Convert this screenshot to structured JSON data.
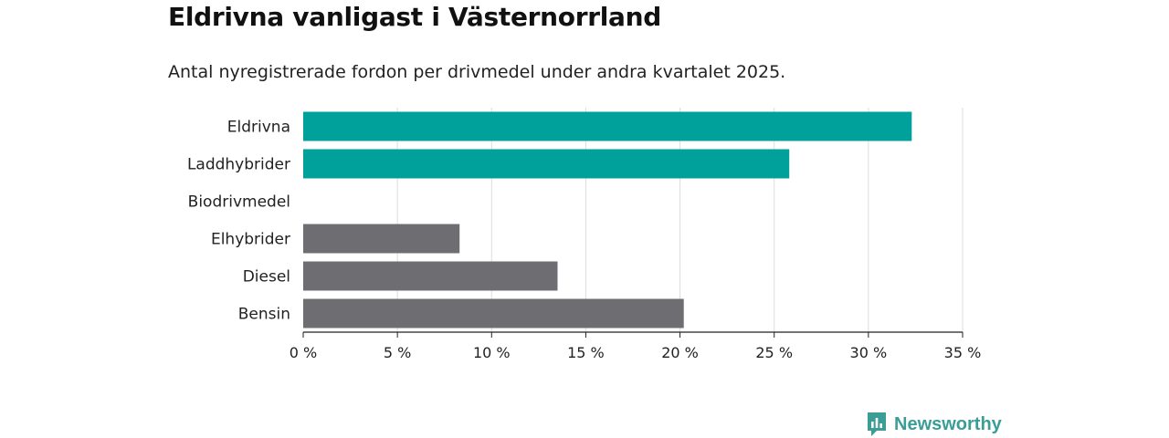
{
  "header": {
    "title": "Eldrivna vanligast i Västernorrland",
    "subtitle": "Antal nyregistrerade fordon per drivmedel under andra kvartalet 2025."
  },
  "brand": {
    "name": "Newsworthy",
    "icon": "newsworthy-logo-icon",
    "color": "#3a9e96"
  },
  "colors": {
    "highlight": "#00a19a",
    "default": "#6e6d72",
    "grid": "#dddddd",
    "axis": "#222222"
  },
  "chart_data": {
    "type": "bar",
    "orientation": "horizontal",
    "categories": [
      "Eldrivna",
      "Laddhybrider",
      "Biodrivmedel",
      "Elhybrider",
      "Diesel",
      "Bensin"
    ],
    "values": [
      32.3,
      25.8,
      0,
      8.3,
      13.5,
      20.2
    ],
    "highlighted": [
      true,
      true,
      false,
      false,
      false,
      false
    ],
    "xlim": [
      0,
      35
    ],
    "xticks": [
      0,
      5,
      10,
      15,
      20,
      25,
      30,
      35
    ],
    "tick_suffix": " %",
    "grid": true
  }
}
